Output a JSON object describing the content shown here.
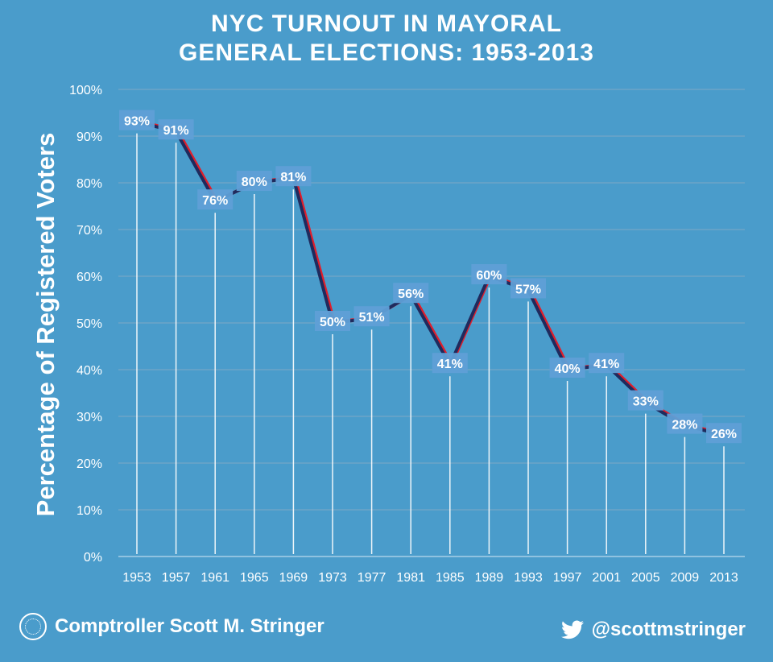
{
  "title_line1": "NYC TURNOUT IN MAYORAL",
  "title_line2": "GENERAL ELECTIONS: 1953-2013",
  "footer": {
    "name": "Comptroller Scott M. Stringer",
    "handle": "@scottmstringer",
    "logo_icon": "nyc-comptroller-seal-icon",
    "social_icon": "twitter-bird-icon"
  },
  "colors": {
    "background": "#4a9ccb",
    "line_dark": "#1f2b5e",
    "line_red": "#e01e2b",
    "label_box": "#5f9fd6",
    "text": "#ffffff"
  },
  "chart_data": {
    "type": "line",
    "title": "NYC TURNOUT IN MAYORAL GENERAL ELECTIONS: 1953-2013",
    "xlabel": "",
    "ylabel": "Percentage of Registered Voters",
    "categories": [
      "1953",
      "1957",
      "1961",
      "1965",
      "1969",
      "1973",
      "1977",
      "1981",
      "1985",
      "1989",
      "1993",
      "1997",
      "2001",
      "2005",
      "2009",
      "2013"
    ],
    "values": [
      93,
      91,
      76,
      80,
      81,
      50,
      51,
      56,
      41,
      60,
      57,
      40,
      41,
      33,
      28,
      26
    ],
    "data_labels": [
      "93%",
      "91%",
      "76%",
      "80%",
      "81%",
      "50%",
      "51%",
      "56%",
      "41%",
      "60%",
      "57%",
      "40%",
      "41%",
      "33%",
      "28%",
      "26%"
    ],
    "ylim": [
      0,
      100
    ],
    "yticks": [
      "0%",
      "10%",
      "20%",
      "30%",
      "40%",
      "50%",
      "60%",
      "70%",
      "80%",
      "90%",
      "100%"
    ],
    "grid": true,
    "drop_lines": true
  }
}
